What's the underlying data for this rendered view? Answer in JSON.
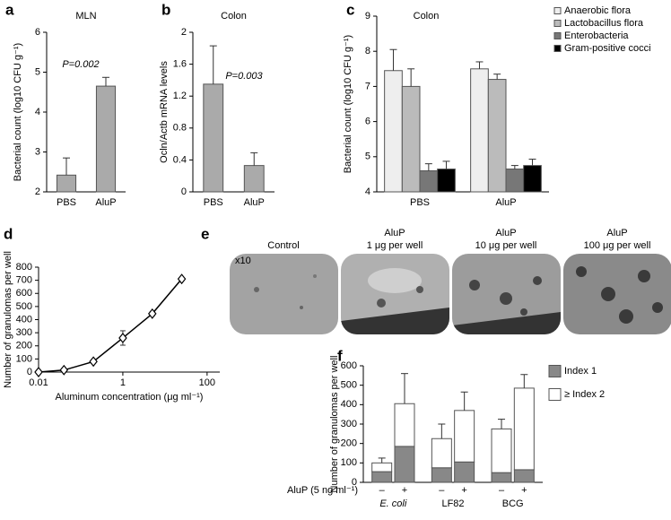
{
  "chart_data": [
    {
      "type": "bar",
      "label": "a",
      "title": "MLN",
      "y_label": "Bacterial count (log10 CFU g⁻¹)",
      "annotation": "P=0.002",
      "categories": [
        "PBS",
        "AluP"
      ],
      "values": [
        2.42,
        4.65
      ],
      "errors": [
        0.43,
        0.22
      ],
      "color": "#aaaaaa",
      "ylim": [
        2,
        6
      ],
      "yticks": [
        2,
        3,
        4,
        5,
        6
      ]
    },
    {
      "type": "bar",
      "label": "b",
      "title": "Colon",
      "y_label": "Ocln/Actb mRNA levels",
      "annotation": "P=0.003",
      "categories": [
        "PBS",
        "AluP"
      ],
      "values": [
        1.35,
        0.33
      ],
      "errors": [
        0.48,
        0.16
      ],
      "color": "#aaaaaa",
      "ylim": [
        0,
        2
      ],
      "yticks": [
        0,
        0.4,
        0.8,
        1.2,
        1.6,
        2
      ]
    },
    {
      "type": "bar",
      "label": "c",
      "title": "Colon",
      "y_label": "Bacterial count (log10 CFU g⁻¹)",
      "categories": [
        "PBS",
        "AluP"
      ],
      "series": [
        {
          "name": "Anaerobic flora",
          "color": "#eeeeee",
          "values": [
            7.45,
            7.5
          ],
          "errors": [
            0.6,
            0.2
          ]
        },
        {
          "name": "Lactobacillus flora",
          "color": "#bbbbbb",
          "values": [
            7.0,
            7.2
          ],
          "errors": [
            0.5,
            0.15
          ]
        },
        {
          "name": "Enterobacteria",
          "color": "#777777",
          "values": [
            4.6,
            4.65
          ],
          "errors": [
            0.2,
            0.1
          ]
        },
        {
          "name": "Gram-positive cocci",
          "color": "#000000",
          "values": [
            4.65,
            4.75
          ],
          "errors": [
            0.22,
            0.18
          ]
        }
      ],
      "ylim": [
        4,
        9
      ],
      "yticks": [
        4,
        5,
        6,
        7,
        8,
        9
      ],
      "legend": "top-right"
    },
    {
      "type": "line",
      "label": "d",
      "y_label": "Number of granulomas per well",
      "x_label": "Aluminum concentration (μg ml⁻¹)",
      "x": [
        0.01,
        0.04,
        0.2,
        1,
        5,
        25
      ],
      "values": [
        0,
        15,
        80,
        260,
        445,
        710
      ],
      "errors": [
        0,
        5,
        12,
        55,
        15,
        10
      ],
      "xscale": "log",
      "xlim": [
        0.01,
        200
      ],
      "xticks": [
        0.01,
        1,
        100
      ],
      "ylim": [
        0,
        800
      ],
      "yticks": [
        0,
        100,
        200,
        300,
        400,
        500,
        600,
        700,
        800
      ],
      "color": "#000000"
    },
    {
      "type": "bar",
      "label": "f",
      "stacked": true,
      "y_label": "Number of granulomas per well",
      "x_label": "AluP (5 ng ml⁻¹)",
      "categories": [
        "–",
        "+",
        "–",
        "+",
        "–",
        "+"
      ],
      "groups": [
        "E. coli",
        "LF82",
        "BCG"
      ],
      "series": [
        {
          "name": "Index 1",
          "color": "#888888",
          "values": [
            55,
            185,
            75,
            105,
            50,
            65
          ]
        },
        {
          "name": "≥ Index 2",
          "color": "#ffffff",
          "values": [
            45,
            220,
            150,
            265,
            225,
            420
          ],
          "errors": [
            25,
            155,
            75,
            95,
            50,
            70
          ]
        }
      ],
      "ylim": [
        0,
        600
      ],
      "yticks": [
        0,
        100,
        200,
        300,
        400,
        500,
        600
      ],
      "legend": "right"
    }
  ],
  "panel_e": {
    "label": "e",
    "magnification": "x10",
    "images": [
      {
        "title": "Control"
      },
      {
        "title": "AluP",
        "subtitle": "1 μg per well"
      },
      {
        "title": "AluP",
        "subtitle": "10 μg per well"
      },
      {
        "title": "AluP",
        "subtitle": "100 μg per well"
      }
    ]
  }
}
